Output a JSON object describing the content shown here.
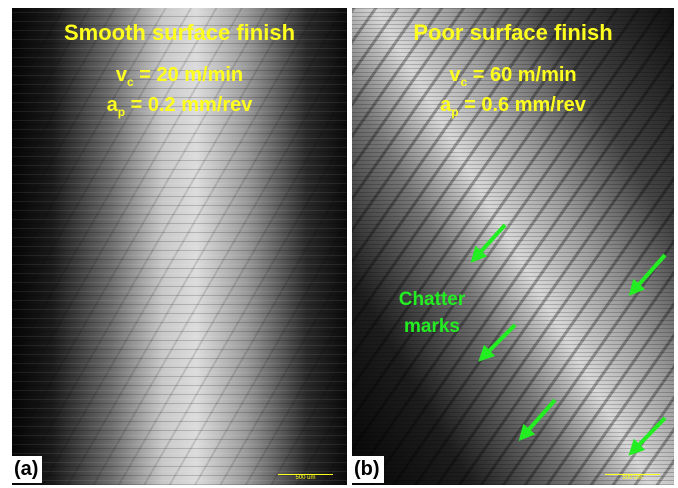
{
  "panels": [
    {
      "label": "(a)",
      "title": "Smooth surface finish",
      "params": [
        {
          "symbol": "v",
          "subscript": "c",
          "rest": " = 20 m/min"
        },
        {
          "symbol": "a",
          "subscript": "p",
          "rest": " = 0.2 mm/rev"
        }
      ],
      "scale_bar": "500 um"
    },
    {
      "label": "(b)",
      "title": "Poor surface finish",
      "params": [
        {
          "symbol": "v",
          "subscript": "c",
          "rest": " = 60 m/min"
        },
        {
          "symbol": "a",
          "subscript": "p",
          "rest": " = 0.6 mm/rev"
        }
      ],
      "annotation": "Chatter marks",
      "scale_bar": "500 um"
    }
  ]
}
